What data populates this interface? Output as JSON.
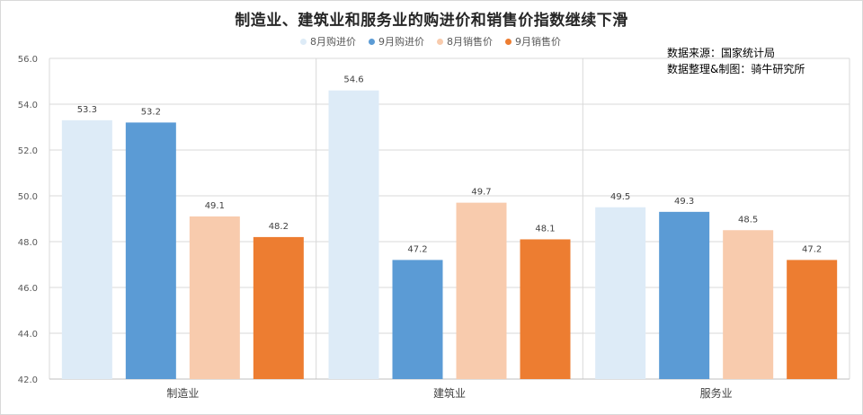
{
  "source": {
    "line1": "数据来源：国家统计局",
    "line2": "数据整理&制图：骑牛研究所"
  },
  "chart_data": {
    "type": "bar",
    "title": "制造业、建筑业和服务业的购进价和销售价指数继续下滑",
    "categories": [
      "制造业",
      "建筑业",
      "服务业"
    ],
    "series": [
      {
        "name": "8月购进价",
        "color": "#ddebf7",
        "values": [
          53.3,
          54.6,
          49.5
        ]
      },
      {
        "name": "9月购进价",
        "color": "#5b9bd5",
        "values": [
          53.2,
          47.2,
          49.3
        ]
      },
      {
        "name": "8月销售价",
        "color": "#f8cbad",
        "values": [
          49.1,
          49.7,
          48.5
        ]
      },
      {
        "name": "9月销售价",
        "color": "#ed7d31",
        "values": [
          48.2,
          48.1,
          47.2
        ]
      }
    ],
    "ylim": [
      42.0,
      56.0
    ],
    "yticks": [
      "42.0",
      "44.0",
      "46.0",
      "48.0",
      "50.0",
      "52.0",
      "54.0",
      "56.0"
    ],
    "grid": true,
    "legend_position": "top",
    "data_labels": true
  }
}
